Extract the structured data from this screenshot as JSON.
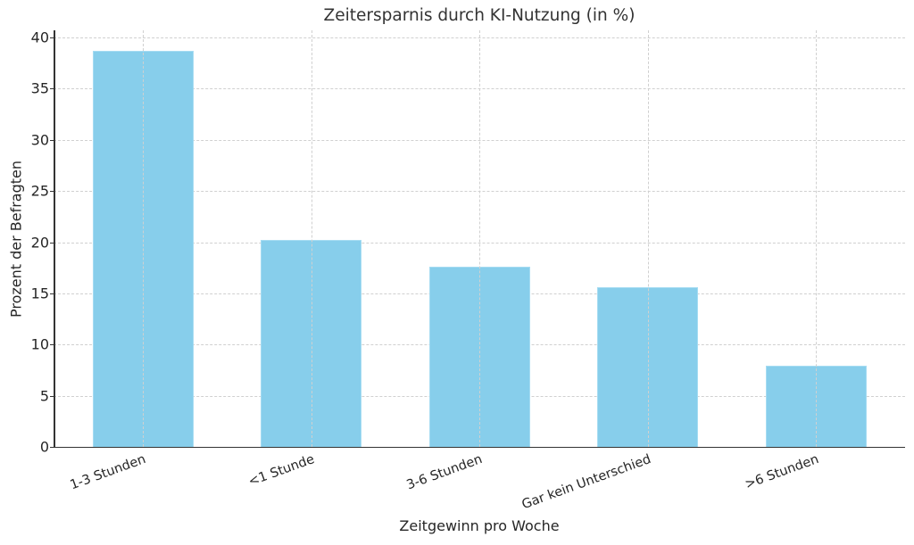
{
  "chart_data": {
    "type": "bar",
    "title": "Zeitersparnis durch KI-Nutzung (in %)",
    "xlabel": "Zeitgewinn pro Woche",
    "ylabel": "Prozent der Befragten",
    "categories": [
      "1-3 Stunden",
      "<1 Stunde",
      "3-6 Stunden",
      "Gar kein Unterschied",
      ">6 Stunden"
    ],
    "values": [
      38.7,
      20.2,
      17.6,
      15.6,
      7.9
    ],
    "ylim": [
      0,
      40.7
    ],
    "yticks": [
      0,
      5,
      10,
      15,
      20,
      25,
      30,
      35,
      40
    ],
    "grid": true,
    "bar_color": "#87ceeb",
    "legend": null
  },
  "labels": {
    "title": "Zeitersparnis durch KI-Nutzung (in %)",
    "xlabel": "Zeitgewinn pro Woche",
    "ylabel": "Prozent der Befragten",
    "yticks": [
      "0",
      "5",
      "10",
      "15",
      "20",
      "25",
      "30",
      "35",
      "40"
    ],
    "categories": [
      "1-3 Stunden",
      "<1 Stunde",
      "3-6 Stunden",
      "Gar kein Unterschied",
      ">6 Stunden"
    ]
  }
}
